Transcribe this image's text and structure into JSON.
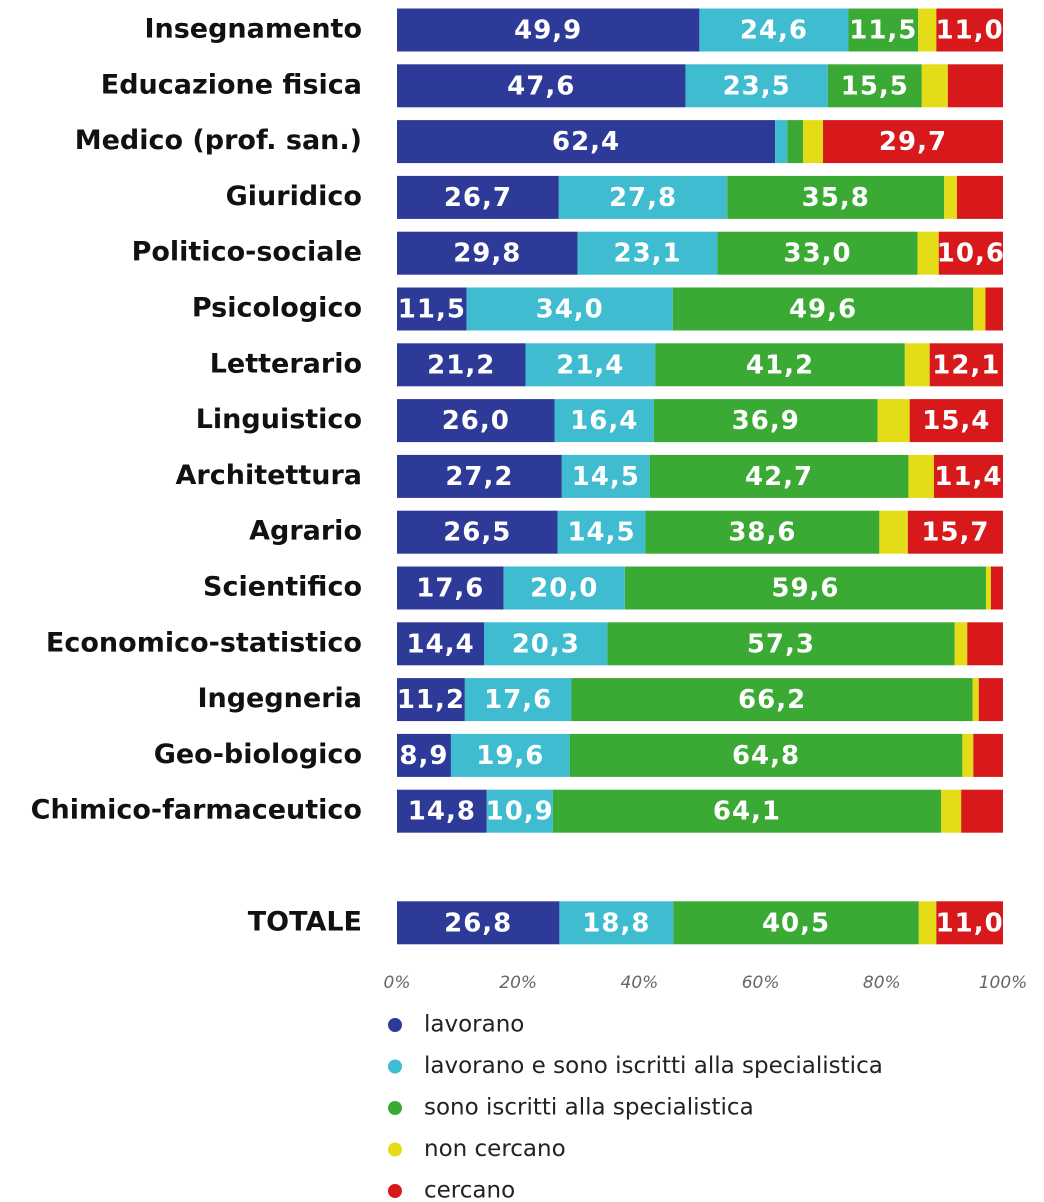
{
  "chart_data": {
    "type": "stacked_bar_horizontal",
    "categories": [
      "Insegnamento",
      "Educazione fisica",
      "Medico (prof. san.)",
      "Giuridico",
      "Politico-sociale",
      "Psicologico",
      "Letterario",
      "Linguistico",
      "Architettura",
      "Agrario",
      "Scientifico",
      "Economico-statistico",
      "Ingegneria",
      "Geo-biologico",
      "Chimico-farmaceutico",
      null,
      "TOTALE"
    ],
    "series": [
      {
        "name": "lavorano",
        "color": "#2e3a97",
        "values": [
          49.9,
          47.6,
          62.4,
          26.7,
          29.8,
          11.5,
          21.2,
          26.0,
          27.2,
          26.5,
          17.6,
          14.4,
          11.2,
          8.9,
          14.8,
          null,
          26.8
        ],
        "value_labels": [
          "49,9",
          "47,6",
          "62,4",
          "26,7",
          "29,8",
          "11,5",
          "21,2",
          "26,0",
          "27,2",
          "26,5",
          "17,6",
          "14,4",
          "11,2",
          "8,9",
          "14,8",
          null,
          "26,8"
        ]
      },
      {
        "name": "lavorano e sono iscritti alla specialistica",
        "color": "#3fbcd0",
        "values": [
          24.6,
          23.5,
          2.0,
          27.8,
          23.1,
          34.0,
          21.4,
          16.4,
          14.5,
          14.5,
          20.0,
          20.3,
          17.6,
          19.6,
          10.9,
          null,
          18.8
        ],
        "value_labels": [
          "24,6",
          "23,5",
          null,
          "27,8",
          "23,1",
          "34,0",
          "21,4",
          "16,4",
          "14,5",
          "14,5",
          "20,0",
          "20,3",
          "17,6",
          "19,6",
          "10,9",
          null,
          "18,8"
        ]
      },
      {
        "name": "sono iscritti alla specialistica",
        "color": "#3aaa35",
        "values": [
          11.5,
          15.5,
          2.6,
          35.8,
          33.0,
          49.6,
          41.2,
          36.9,
          42.7,
          38.6,
          59.6,
          57.3,
          66.2,
          64.8,
          64.1,
          null,
          40.5
        ],
        "value_labels": [
          "11,5",
          "15,5",
          null,
          "35,8",
          "33,0",
          "49,6",
          "41,2",
          "36,9",
          "42,7",
          "38,6",
          "59,6",
          "57,3",
          "66,2",
          "64,8",
          "64,1",
          null,
          "40,5"
        ]
      },
      {
        "name": "non cercano",
        "color": "#e3dc17",
        "values": [
          3.0,
          4.3,
          3.3,
          2.1,
          3.5,
          2.0,
          4.1,
          5.3,
          4.2,
          4.7,
          0.8,
          2.1,
          1.0,
          1.8,
          3.3,
          null,
          2.9
        ]
      },
      {
        "name": "cercano",
        "color": "#d7191c",
        "values": [
          11.0,
          9.1,
          29.7,
          7.6,
          10.6,
          2.9,
          12.1,
          15.4,
          11.4,
          15.7,
          2.0,
          5.9,
          4.0,
          4.9,
          6.9,
          null,
          11.0
        ],
        "value_labels": [
          "11,0",
          null,
          "29,7",
          null,
          "10,6",
          null,
          "12,1",
          "15,4",
          "11,4",
          "15,7",
          null,
          null,
          null,
          null,
          null,
          null,
          "11,0"
        ]
      }
    ],
    "xlim": [
      0,
      100
    ],
    "xticks": [
      {
        "value": 0,
        "label": "0%"
      },
      {
        "value": 20,
        "label": "20%"
      },
      {
        "value": 40,
        "label": "40%"
      },
      {
        "value": 60,
        "label": "60%"
      },
      {
        "value": 80,
        "label": "80%"
      },
      {
        "value": 100,
        "label": "100%"
      }
    ],
    "grid": false
  }
}
